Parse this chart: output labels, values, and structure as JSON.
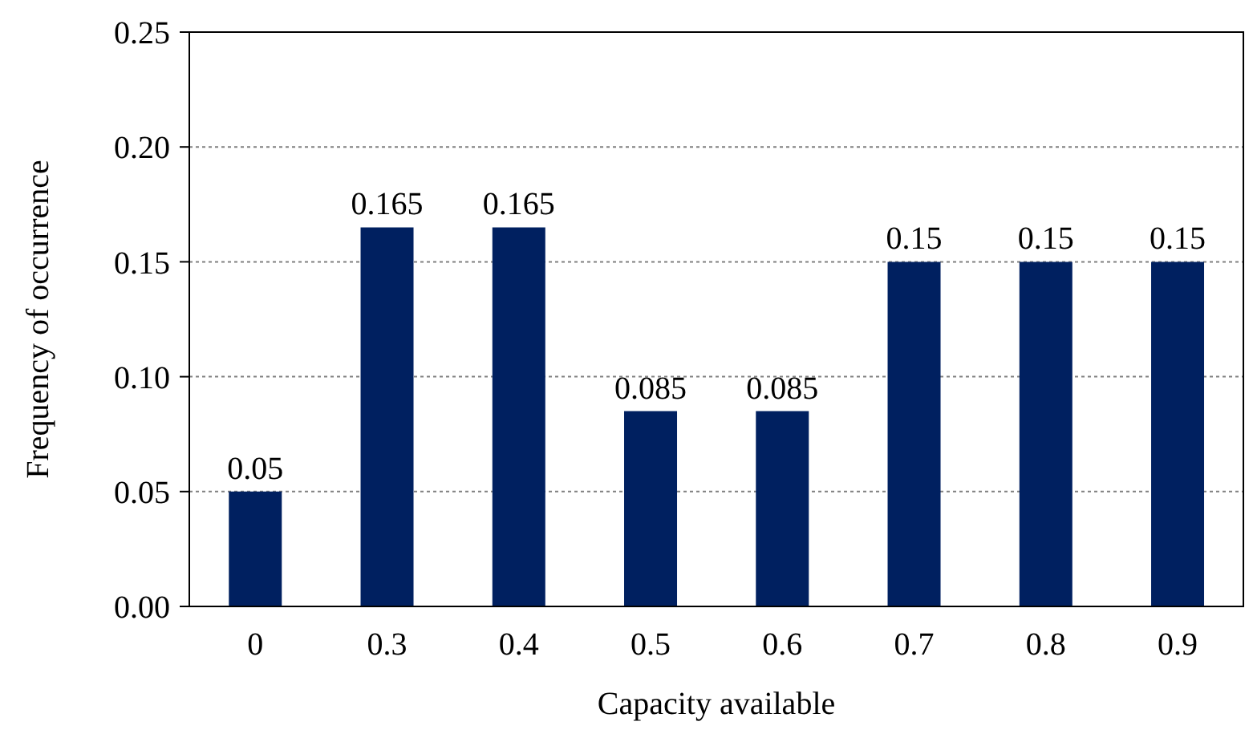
{
  "chart_data": {
    "type": "bar",
    "xlabel": "Capacity available",
    "ylabel": "Frequency of occurrence",
    "categories": [
      "0",
      "0.3",
      "0.4",
      "0.5",
      "0.6",
      "0.7",
      "0.8",
      "0.9"
    ],
    "values": [
      0.05,
      0.165,
      0.165,
      0.085,
      0.085,
      0.15,
      0.15,
      0.15
    ],
    "color": "#002060",
    "ylim": [
      0,
      0.25
    ],
    "yticks": [
      {
        "value": 0,
        "label": "0.00"
      },
      {
        "value": 0.05,
        "label": "0.05"
      },
      {
        "value": 0.1,
        "label": "0.10"
      },
      {
        "value": 0.15,
        "label": "0.15"
      },
      {
        "value": 0.2,
        "label": "0.20"
      },
      {
        "value": 0.25,
        "label": "0.25"
      }
    ],
    "grid": "y",
    "data_labels": true,
    "legend": false
  }
}
